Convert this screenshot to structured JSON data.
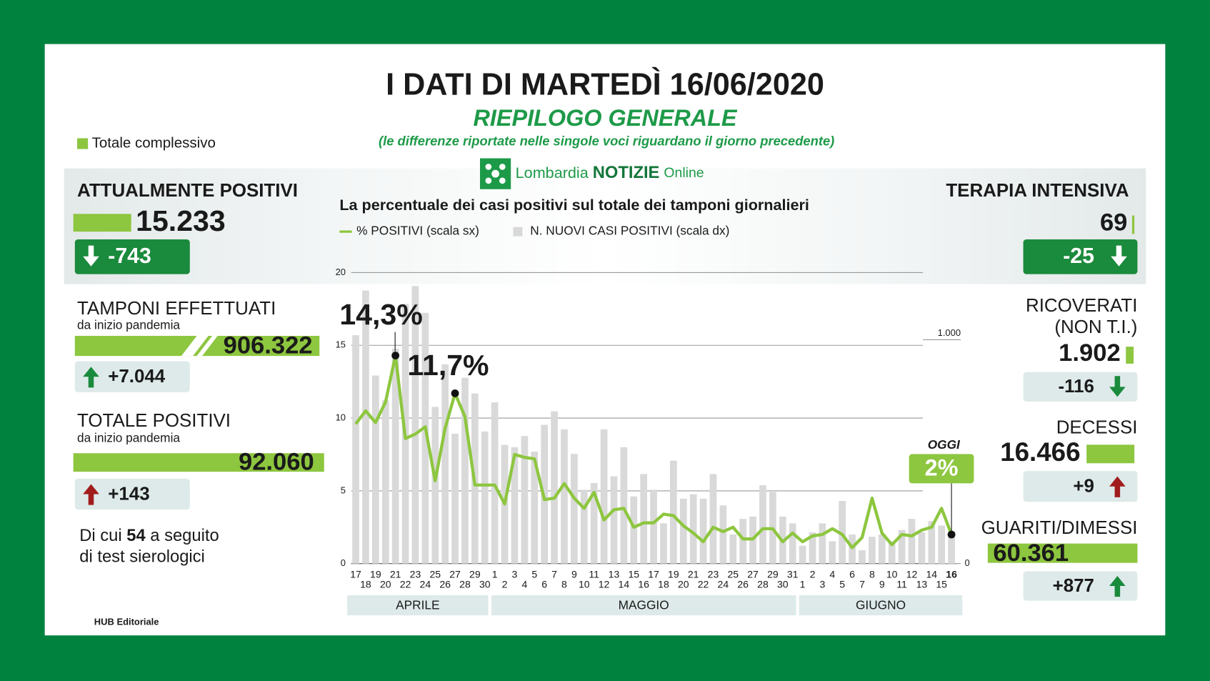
{
  "header": {
    "title": "I DATI DI MARTEDÌ 16/06/2020",
    "subtitle": "RIEPILOGO GENERALE",
    "note": "(le differenze riportate nelle singole voci riguardano il giorno precedente)",
    "legend": "Totale complessivo",
    "logo": [
      "Lombardia",
      "NOTIZIE",
      "Online"
    ]
  },
  "panels": {
    "left": [
      {
        "title": "ATTUALMENTE POSITIVI",
        "total": "15.233",
        "change": "-743"
      },
      {
        "title": "TAMPONI EFFETTUATI",
        "subtitle": "da inizio pandemia",
        "total": "906.322",
        "change": "+7.044"
      },
      {
        "title": "TOTALE POSITIVI",
        "subtitle": "da inizio pandemia",
        "total": "92.060",
        "change": "+143"
      }
    ],
    "right": [
      {
        "title": "TERAPIA INTENSIVA",
        "total": "69",
        "change": "-25"
      },
      {
        "title": "RICOVERATI",
        "subtitle": "(NON T.I.)",
        "total": "1.902",
        "change": "-116"
      },
      {
        "title": "DECESSI",
        "total": "16.466",
        "change": "+9"
      },
      {
        "title": "GUARITI/DIMESSI",
        "total": "60.361",
        "change": "+877"
      }
    ]
  },
  "serology": [
    "Di cui ",
    "54",
    " a seguito",
    "di test sierologici"
  ],
  "footer": "HUB Editoriale",
  "chart_data": {
    "type": "combo",
    "title": "La percentuale dei casi positivi sul totale dei tamponi giornalieri",
    "categories": [
      "17",
      "18",
      "19",
      "20",
      "21",
      "22",
      "23",
      "24",
      "25",
      "26",
      "27",
      "28",
      "29",
      "30",
      "1",
      "2",
      "3",
      "4",
      "5",
      "6",
      "7",
      "8",
      "9",
      "10",
      "11",
      "12",
      "13",
      "14",
      "15",
      "16",
      "17",
      "18",
      "19",
      "20",
      "21",
      "22",
      "23",
      "24",
      "25",
      "26",
      "27",
      "28",
      "29",
      "30",
      "31",
      "1",
      "2",
      "3",
      "4",
      "5",
      "6",
      "7",
      "8",
      "9",
      "10",
      "11",
      "12",
      "13",
      "14",
      "15",
      "16"
    ],
    "months": [
      "APRILE",
      "MAGGIO",
      "GIUGNO"
    ],
    "series": [
      {
        "name": "% POSITIVI (scala sx)",
        "type": "line",
        "color": "#8dc63f",
        "values": [
          9.6,
          10.5,
          9.7,
          11.1,
          14.3,
          8.6,
          8.9,
          9.4,
          5.7,
          9.3,
          11.7,
          10.1,
          5.4,
          5.4,
          5.4,
          4.1,
          7.5,
          7.3,
          7.2,
          4.4,
          4.5,
          5.5,
          4.5,
          3.8,
          4.9,
          3.0,
          3.7,
          3.8,
          2.5,
          2.8,
          2.8,
          3.4,
          3.3,
          2.6,
          2.1,
          1.5,
          2.5,
          2.2,
          2.5,
          1.7,
          1.7,
          2.4,
          2.4,
          1.5,
          2.1,
          1.5,
          1.9,
          2.0,
          2.4,
          2.0,
          1.1,
          1.8,
          4.5,
          2.1,
          1.3,
          2.0,
          1.9,
          2.3,
          2.5,
          3.8,
          2.0
        ]
      },
      {
        "name": "N. NUOVI CASI POSITIVI (scala dx)",
        "type": "bar",
        "axis": "y2",
        "color": "#d9d9d9",
        "values": [
          1020,
          1220,
          840,
          730,
          960,
          1160,
          1240,
          1120,
          700,
          890,
          580,
          830,
          760,
          590,
          720,
          530,
          520,
          570,
          500,
          620,
          680,
          600,
          490,
          330,
          360,
          600,
          390,
          520,
          300,
          400,
          330,
          180,
          460,
          290,
          310,
          290,
          400,
          260,
          130,
          200,
          210,
          350,
          320,
          210,
          180,
          80,
          140,
          180,
          100,
          280,
          130,
          60,
          120,
          130,
          100,
          150,
          200,
          140,
          190,
          170,
          143
        ]
      }
    ],
    "ylim": [
      0,
      20
    ],
    "yticks": [
      0,
      5,
      10,
      15,
      20
    ],
    "y2lim": [
      0,
      1300
    ],
    "y2ticks": [
      0,
      {
        "value": 1000,
        "label": "1.000"
      }
    ],
    "grid": true,
    "annotations": [
      "14,3%",
      "11,7%",
      "OGGI",
      "2%"
    ]
  }
}
